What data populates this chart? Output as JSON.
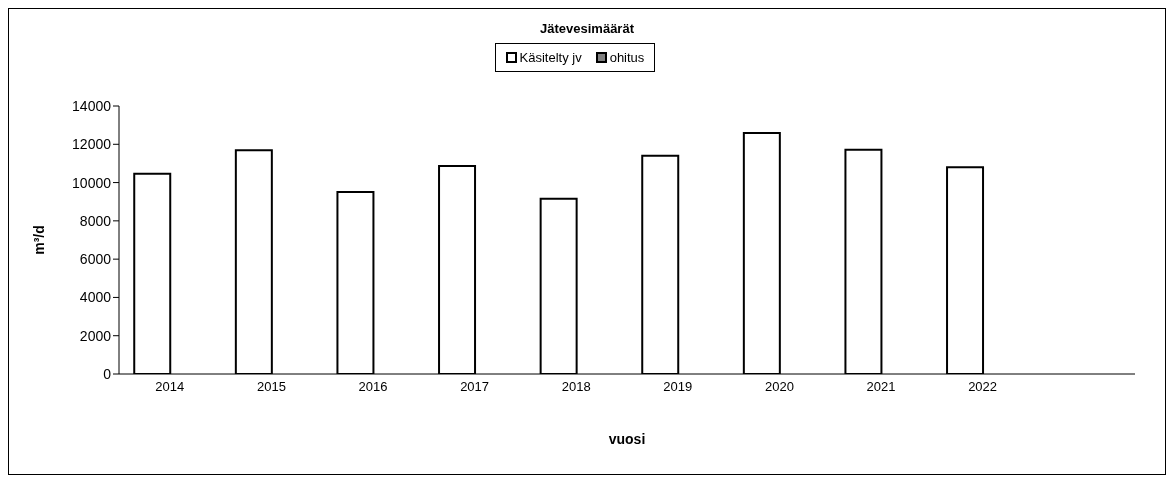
{
  "chart_data": {
    "type": "bar",
    "title": "Jätevesimäärät",
    "xlabel": "vuosi",
    "ylabel": "m³/d",
    "categories": [
      "2014",
      "2015",
      "2016",
      "2017",
      "2018",
      "2019",
      "2020",
      "2021",
      "2022",
      null
    ],
    "series": [
      {
        "name": "Käsitelty jv",
        "color": "#ffffff",
        "values": [
          10460,
          11690,
          9510,
          10860,
          9150,
          11400,
          12590,
          11720,
          10800,
          null
        ]
      },
      {
        "name": "ohitus",
        "color": "#808080",
        "values": [
          null,
          null,
          null,
          null,
          0,
          0,
          0,
          0,
          0,
          null
        ]
      }
    ],
    "ylim": [
      0,
      14000
    ],
    "yticks": [
      0,
      2000,
      4000,
      6000,
      8000,
      10000,
      12000,
      14000
    ],
    "grid": false,
    "legend": "top"
  }
}
